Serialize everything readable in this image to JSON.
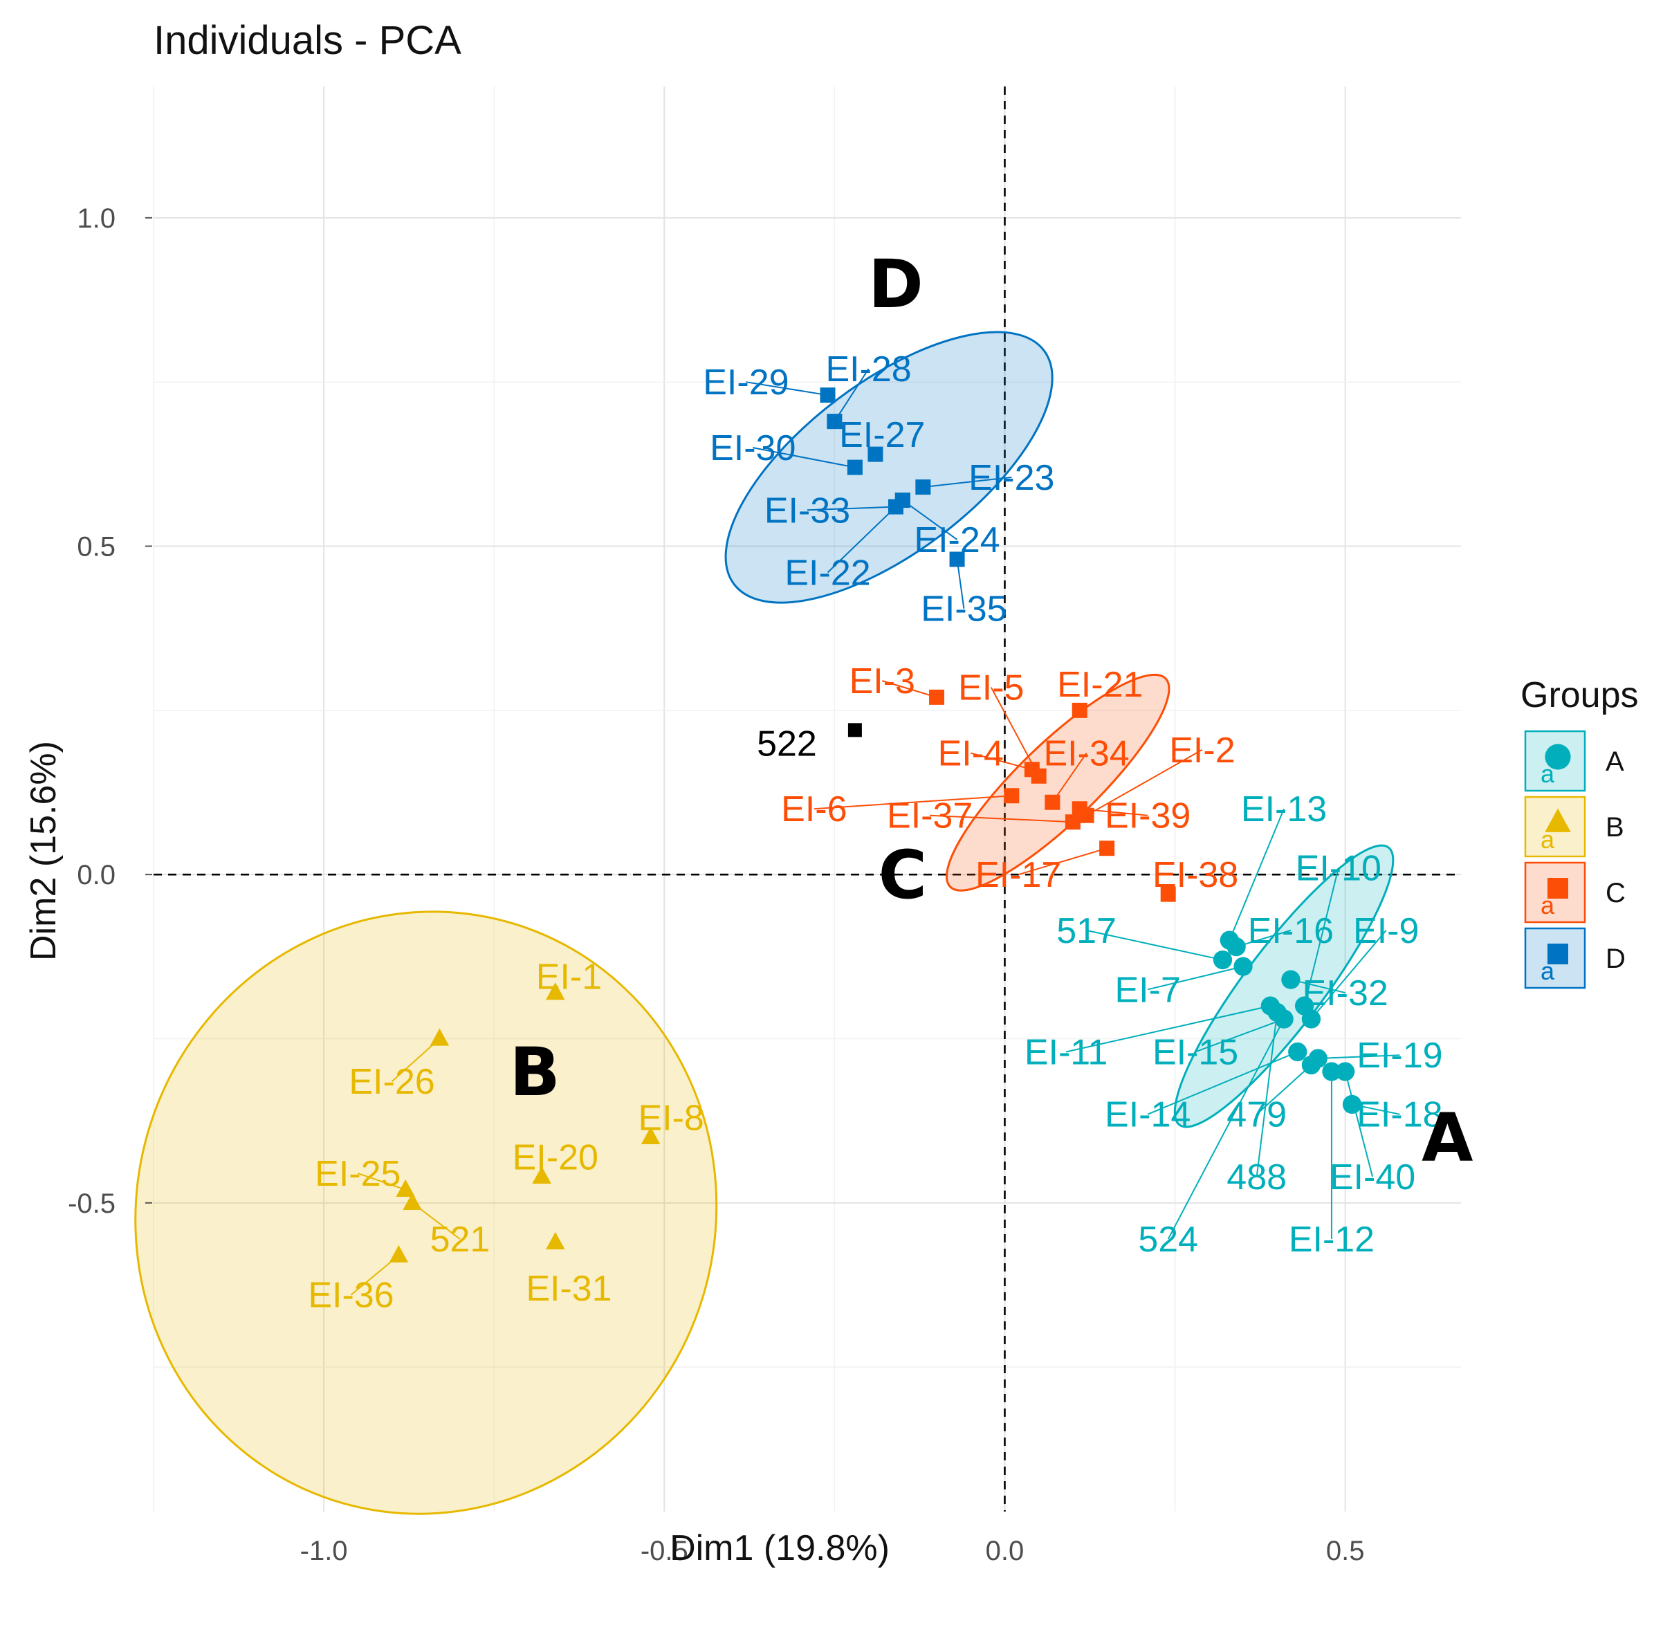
{
  "chart_data": {
    "type": "scatter",
    "title": "Individuals - PCA",
    "xlabel": "Dim1 (19.8%)",
    "ylabel": "Dim2 (15.6%)",
    "xlim": [
      -1.25,
      0.67
    ],
    "ylim": [
      -0.97,
      1.2
    ],
    "x_ticks": [
      -1.0,
      -0.5,
      0.0,
      0.5
    ],
    "x_tick_labels": [
      "-1.0",
      "-0.5",
      "0.0",
      "0.5"
    ],
    "y_ticks": [
      -0.5,
      0.0,
      0.5,
      1.0
    ],
    "y_tick_labels": [
      "-0.5",
      "0.0",
      "0.5",
      "1.0"
    ],
    "grid": true,
    "reference_lines": {
      "x": 0,
      "y": 0,
      "style": "dashed"
    },
    "legend": {
      "title": "Groups",
      "placement": "right",
      "items": [
        {
          "group": "A",
          "label": "A",
          "marker": "circle",
          "glyph": "a"
        },
        {
          "group": "B",
          "label": "B",
          "marker": "triangle",
          "glyph": "a"
        },
        {
          "group": "C",
          "label": "C",
          "marker": "square",
          "glyph": "a"
        },
        {
          "group": "D",
          "label": "D",
          "marker": "square",
          "glyph": "a"
        }
      ]
    },
    "groups": [
      {
        "name": "A",
        "marker": "circle",
        "color": "#00AFBB",
        "fill": "#00AFBB",
        "ellipse": {
          "cx": 0.41,
          "cy": -0.17,
          "rx": 0.255,
          "ry": 0.06,
          "angle": -53
        },
        "letter": {
          "text": "A",
          "x": 0.65,
          "y": -0.4
        },
        "points": [
          {
            "id": "EI-13",
            "x": 0.33,
            "y": -0.1,
            "label_x": 0.41,
            "label_y": 0.1
          },
          {
            "id": "EI-10",
            "x": 0.44,
            "y": -0.2,
            "label_x": 0.49,
            "label_y": 0.01
          },
          {
            "id": "517",
            "x": 0.32,
            "y": -0.13,
            "label_x": 0.12,
            "label_y": -0.085
          },
          {
            "id": "EI-16",
            "x": 0.34,
            "y": -0.11,
            "label_x": 0.42,
            "label_y": -0.085
          },
          {
            "id": "EI-9",
            "x": 0.45,
            "y": -0.22,
            "label_x": 0.56,
            "label_y": -0.085
          },
          {
            "id": "EI-7",
            "x": 0.35,
            "y": -0.14,
            "label_x": 0.21,
            "label_y": -0.175
          },
          {
            "id": "EI-32",
            "x": 0.42,
            "y": -0.16,
            "label_x": 0.5,
            "label_y": -0.18
          },
          {
            "id": "EI-11",
            "x": 0.39,
            "y": -0.2,
            "label_x": 0.09,
            "label_y": -0.27
          },
          {
            "id": "EI-15",
            "x": 0.41,
            "y": -0.22,
            "label_x": 0.28,
            "label_y": -0.27
          },
          {
            "id": "EI-19",
            "x": 0.46,
            "y": -0.28,
            "label_x": 0.58,
            "label_y": -0.275
          },
          {
            "id": "EI-14",
            "x": 0.43,
            "y": -0.27,
            "label_x": 0.21,
            "label_y": -0.365
          },
          {
            "id": "479",
            "x": 0.45,
            "y": -0.29,
            "label_x": 0.37,
            "label_y": -0.365
          },
          {
            "id": "EI-18",
            "x": 0.51,
            "y": -0.35,
            "label_x": 0.58,
            "label_y": -0.365
          },
          {
            "id": "488",
            "x": 0.4,
            "y": -0.21,
            "label_x": 0.37,
            "label_y": -0.46
          },
          {
            "id": "EI-40",
            "x": 0.5,
            "y": -0.3,
            "label_x": 0.54,
            "label_y": -0.46
          },
          {
            "id": "524",
            "x": 0.41,
            "y": -0.22,
            "label_x": 0.24,
            "label_y": -0.555
          },
          {
            "id": "EI-12",
            "x": 0.48,
            "y": -0.3,
            "label_x": 0.48,
            "label_y": -0.555
          }
        ]
      },
      {
        "name": "B",
        "marker": "triangle",
        "color": "#E7B800",
        "fill": "#E7B800",
        "ellipse": {
          "cx": -0.85,
          "cy": -0.515,
          "rx": 0.425,
          "ry": 0.46,
          "angle": 17
        },
        "letter": {
          "text": "B",
          "x": -0.69,
          "y": -0.3
        },
        "points": [
          {
            "id": "EI-1",
            "x": -0.66,
            "y": -0.18,
            "label_x": -0.64,
            "label_y": -0.155
          },
          {
            "id": "EI-26",
            "x": -0.83,
            "y": -0.25,
            "label_x": -0.9,
            "label_y": -0.315
          },
          {
            "id": "EI-8",
            "x": -0.52,
            "y": -0.4,
            "label_x": -0.49,
            "label_y": -0.37
          },
          {
            "id": "EI-20",
            "x": -0.68,
            "y": -0.46,
            "label_x": -0.66,
            "label_y": -0.43
          },
          {
            "id": "EI-25",
            "x": -0.88,
            "y": -0.48,
            "label_x": -0.95,
            "label_y": -0.455
          },
          {
            "id": "521",
            "x": -0.87,
            "y": -0.5,
            "label_x": -0.8,
            "label_y": -0.555
          },
          {
            "id": "EI-31",
            "x": -0.66,
            "y": -0.56,
            "label_x": -0.64,
            "label_y": -0.63
          },
          {
            "id": "EI-36",
            "x": -0.89,
            "y": -0.58,
            "label_x": -0.96,
            "label_y": -0.64
          }
        ]
      },
      {
        "name": "C",
        "marker": "square",
        "color": "#FC4E07",
        "fill": "#FC4E07",
        "ellipse": {
          "cx": 0.078,
          "cy": 0.14,
          "rx": 0.22,
          "ry": 0.06,
          "angle": -44
        },
        "letter": {
          "text": "C",
          "x": -0.15,
          "y": 0.0
        },
        "points": [
          {
            "id": "EI-3",
            "x": -0.1,
            "y": 0.27,
            "label_x": -0.18,
            "label_y": 0.295
          },
          {
            "id": "EI-5",
            "x": 0.05,
            "y": 0.15,
            "label_x": -0.02,
            "label_y": 0.285
          },
          {
            "id": "EI-21",
            "x": 0.11,
            "y": 0.25,
            "label_x": 0.14,
            "label_y": 0.29
          },
          {
            "id": "EI-4",
            "x": 0.04,
            "y": 0.16,
            "label_x": -0.05,
            "label_y": 0.185
          },
          {
            "id": "EI-34",
            "x": 0.07,
            "y": 0.11,
            "label_x": 0.12,
            "label_y": 0.185
          },
          {
            "id": "EI-2",
            "x": 0.12,
            "y": 0.09,
            "label_x": 0.29,
            "label_y": 0.19
          },
          {
            "id": "EI-6",
            "x": 0.01,
            "y": 0.12,
            "label_x": -0.28,
            "label_y": 0.1
          },
          {
            "id": "EI-37",
            "x": 0.1,
            "y": 0.08,
            "label_x": -0.11,
            "label_y": 0.09
          },
          {
            "id": "EI-39",
            "x": 0.11,
            "y": 0.1,
            "label_x": 0.21,
            "label_y": 0.09
          },
          {
            "id": "EI-17",
            "x": 0.15,
            "y": 0.04,
            "label_x": 0.02,
            "label_y": 0.0
          },
          {
            "id": "EI-38",
            "x": 0.24,
            "y": -0.03,
            "label_x": 0.28,
            "label_y": 0.0
          }
        ]
      },
      {
        "name": "D",
        "marker": "square",
        "color": "#0073C2",
        "fill": "#0073C2",
        "ellipse": {
          "cx": -0.17,
          "cy": 0.62,
          "rx": 0.285,
          "ry": 0.13,
          "angle": -37
        },
        "letter": {
          "text": "D",
          "x": -0.16,
          "y": 0.9
        },
        "points": [
          {
            "id": "EI-29",
            "x": -0.26,
            "y": 0.73,
            "label_x": -0.38,
            "label_y": 0.75
          },
          {
            "id": "EI-28",
            "x": -0.25,
            "y": 0.69,
            "label_x": -0.2,
            "label_y": 0.77
          },
          {
            "id": "EI-30",
            "x": -0.22,
            "y": 0.62,
            "label_x": -0.37,
            "label_y": 0.65
          },
          {
            "id": "EI-27",
            "x": -0.19,
            "y": 0.64,
            "label_x": -0.18,
            "label_y": 0.67
          },
          {
            "id": "EI-23",
            "x": -0.12,
            "y": 0.59,
            "label_x": 0.01,
            "label_y": 0.605
          },
          {
            "id": "EI-33",
            "x": -0.16,
            "y": 0.56,
            "label_x": -0.29,
            "label_y": 0.555
          },
          {
            "id": "EI-24",
            "x": -0.15,
            "y": 0.57,
            "label_x": -0.07,
            "label_y": 0.51
          },
          {
            "id": "EI-22",
            "x": -0.15,
            "y": 0.57,
            "label_x": -0.26,
            "label_y": 0.46
          },
          {
            "id": "EI-35",
            "x": -0.07,
            "y": 0.48,
            "label_x": -0.06,
            "label_y": 0.405
          }
        ]
      }
    ],
    "unassigned_points": [
      {
        "id": "522",
        "x": -0.22,
        "y": 0.22,
        "label_x": -0.32,
        "label_y": 0.2,
        "marker": "square",
        "color": "#000000"
      }
    ]
  }
}
